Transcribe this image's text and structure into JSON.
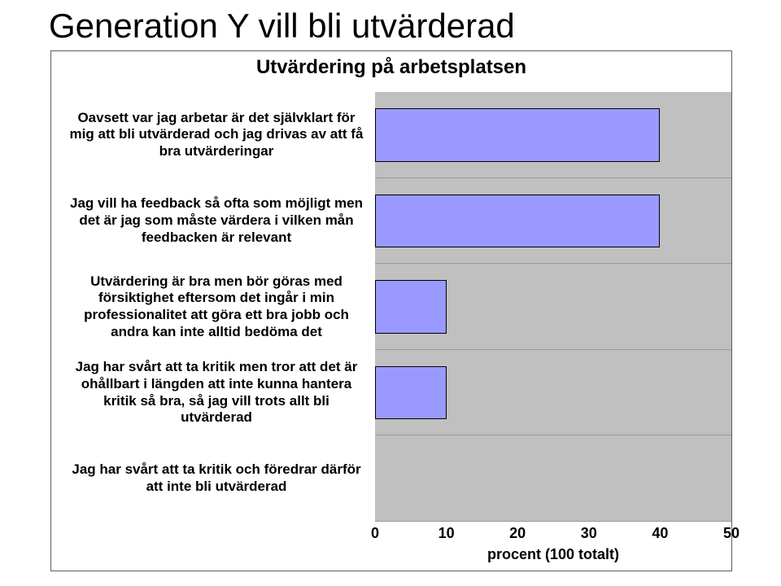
{
  "page_title": "Generation Y vill bli utvärderad",
  "chart": {
    "type": "bar",
    "title": "Utvärdering på arbetsplatsen",
    "title_fontsize": 24,
    "label_fontsize": 17,
    "label_fontweight": "700",
    "tick_fontsize": 18,
    "background_color": "#ffffff",
    "plot_background_color": "#c0c0c0",
    "grid_color": "#9a9a9a",
    "card_border_color": "#5c5c5c",
    "bar_fill_color": "#9999ff",
    "bar_border_color": "#000000",
    "bar_height_ratio": 0.62,
    "xlim": [
      0,
      50
    ],
    "xtick_step": 10,
    "xticks": [
      "0",
      "10",
      "20",
      "30",
      "40",
      "50"
    ],
    "xlabel": "procent (100 totalt)",
    "categories": [
      "Oavsett var jag arbetar är det självklart för mig att bli utvärderad och jag drivas av att få bra utvärderingar",
      "Jag vill ha feedback så ofta som möjligt men det är jag som måste värdera i vilken mån feedbacken är relevant",
      "Utvärdering är bra men bör göras med försiktighet eftersom det ingår i min professionalitet att göra ett bra jobb och andra kan inte alltid bedöma det",
      "Jag har svårt att ta kritik men tror att det är ohållbart i längden att inte kunna hantera kritik så bra, så jag vill trots allt bli utvärderad",
      "Jag har svårt att ta kritik och föredrar därför att inte bli utvärderad"
    ],
    "values": [
      40,
      40,
      10,
      10,
      0
    ]
  }
}
